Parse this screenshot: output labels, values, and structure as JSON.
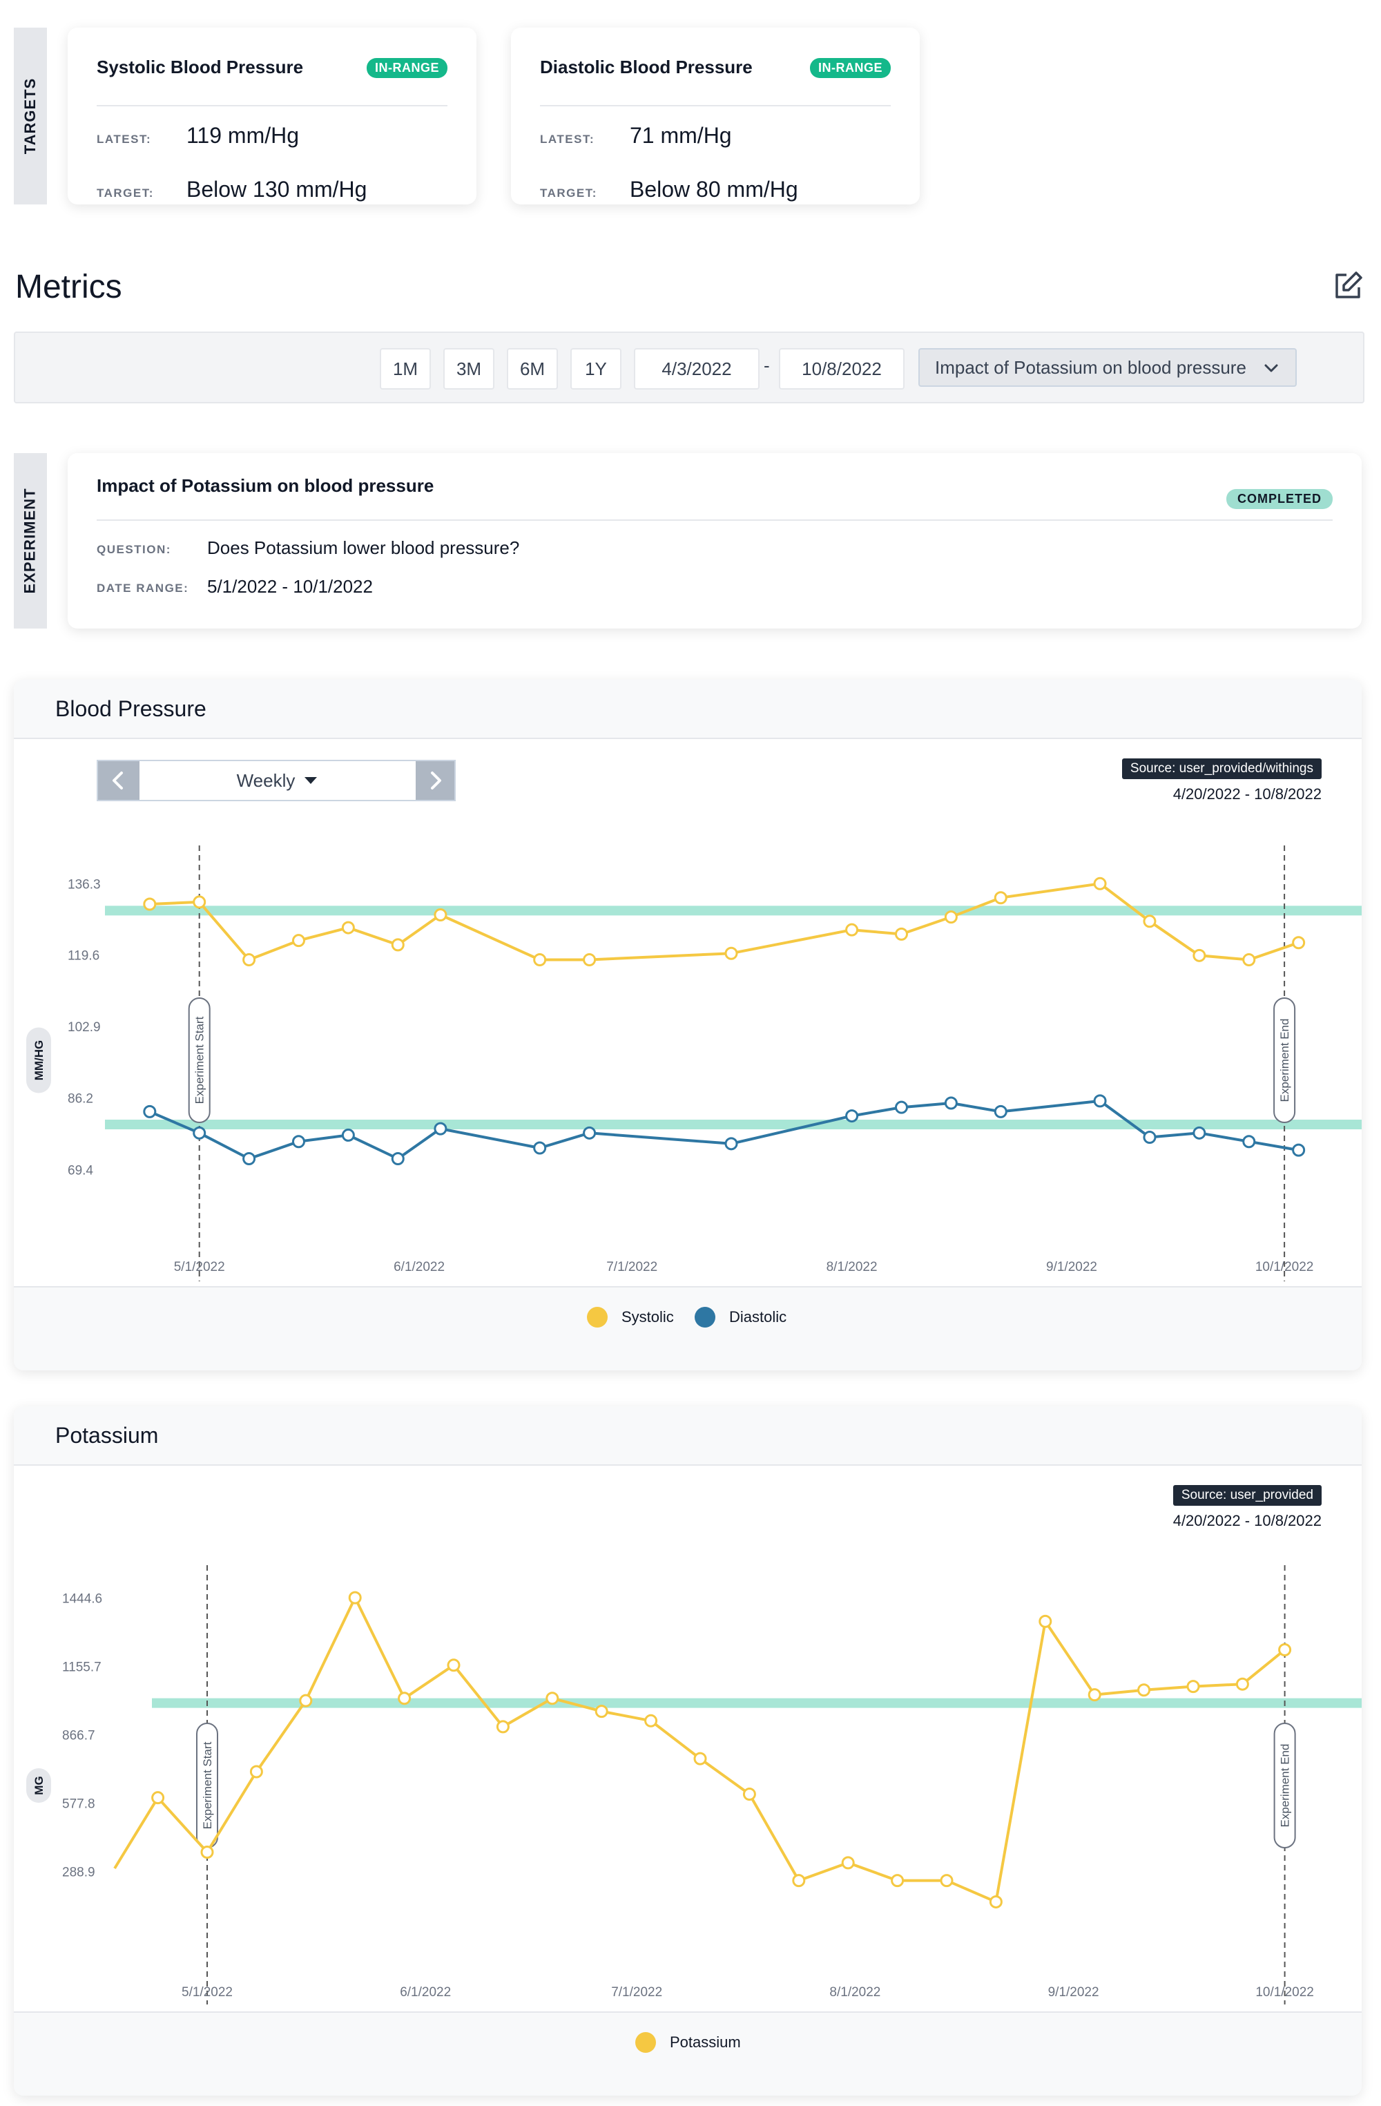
{
  "targets": {
    "side_label": "TARGETS",
    "cards": [
      {
        "title": "Systolic Blood Pressure",
        "badge": "IN-RANGE",
        "latest_label": "LATEST:",
        "latest_value": "119 mm/Hg",
        "target_label": "TARGET:",
        "target_value": "Below 130 mm/Hg"
      },
      {
        "title": "Diastolic Blood Pressure",
        "badge": "IN-RANGE",
        "latest_label": "LATEST:",
        "latest_value": "71 mm/Hg",
        "target_label": "TARGET:",
        "target_value": "Below 80 mm/Hg"
      }
    ]
  },
  "metrics": {
    "title": "Metrics",
    "edit_icon": "edit-icon",
    "range_buttons": [
      "1M",
      "3M",
      "6M",
      "1Y"
    ],
    "start_date": "4/3/2022",
    "date_separator": "-",
    "end_date": "10/8/2022",
    "experiment_select": "Impact of Potassium on blood pressure",
    "chevron_icon": "chevron-down-icon"
  },
  "experiment": {
    "side_label": "EXPERIMENT",
    "title": "Impact of Potassium on blood pressure",
    "status": "COMPLETED",
    "question_label": "QUESTION:",
    "question": "Does Potassium lower blood pressure?",
    "date_range_label": "DATE RANGE:",
    "date_range": "5/1/2022 - 10/1/2022"
  },
  "colors": {
    "systolic": "#f5c842",
    "diastolic": "#2e77a3",
    "target_band": "#a8e6d6",
    "badge_green": "#14b88a"
  },
  "bp_chart": {
    "title": "Blood Pressure",
    "period": "Weekly",
    "prev_icon": "chevron-left-icon",
    "next_icon": "chevron-right-icon",
    "source": "Source: user_provided/withings",
    "date_range": "4/20/2022 - 10/8/2022",
    "legend": [
      "Systolic",
      "Diastolic"
    ]
  },
  "potassium_chart": {
    "title": "Potassium",
    "source": "Source: user_provided",
    "date_range": "4/20/2022 - 10/8/2022",
    "legend": [
      "Potassium"
    ]
  },
  "chart_data": [
    {
      "type": "line",
      "title": "Blood Pressure",
      "ylabel": "MM/HG",
      "ylim": [
        59,
        142
      ],
      "yticks": [
        136.3,
        119.6,
        102.9,
        86.2,
        69.4
      ],
      "xticks": [
        "5/1/2022",
        "6/1/2022",
        "7/1/2022",
        "8/1/2022",
        "9/1/2022",
        "10/1/2022"
      ],
      "xlim": [
        "2022-04-21",
        "2022-10-08"
      ],
      "target_lines": [
        130,
        80
      ],
      "markers": [
        {
          "label": "Experiment Start",
          "x": "2022-05-01"
        },
        {
          "label": "Experiment End",
          "x": "2022-10-01"
        }
      ],
      "legend_position": "bottom",
      "series": [
        {
          "name": "Systolic",
          "x": [
            "2022-04-24",
            "2022-05-01",
            "2022-05-08",
            "2022-05-15",
            "2022-05-22",
            "2022-05-29",
            "2022-06-04",
            "2022-06-18",
            "2022-06-25",
            "2022-07-15",
            "2022-08-01",
            "2022-08-08",
            "2022-08-15",
            "2022-08-22",
            "2022-09-05",
            "2022-09-12",
            "2022-09-19",
            "2022-09-26",
            "2022-10-03"
          ],
          "y": [
            131.5,
            132,
            118.5,
            123,
            126,
            122,
            129,
            118.5,
            118.5,
            120,
            125.5,
            124.5,
            128.5,
            133,
            136.3,
            127.5,
            119.5,
            118.5,
            122.5
          ]
        },
        {
          "name": "Diastolic",
          "x": [
            "2022-04-24",
            "2022-05-01",
            "2022-05-08",
            "2022-05-15",
            "2022-05-22",
            "2022-05-29",
            "2022-06-04",
            "2022-06-18",
            "2022-06-25",
            "2022-07-15",
            "2022-08-01",
            "2022-08-08",
            "2022-08-15",
            "2022-08-22",
            "2022-09-05",
            "2022-09-12",
            "2022-09-19",
            "2022-09-26",
            "2022-10-03"
          ],
          "y": [
            83,
            78,
            72,
            76,
            77.5,
            72,
            79,
            74.5,
            78,
            75.5,
            82,
            84,
            85,
            83,
            85.5,
            77,
            78,
            76,
            74
          ]
        }
      ]
    },
    {
      "type": "line",
      "title": "Potassium",
      "ylabel": "MG",
      "ylim": [
        100,
        1530
      ],
      "yticks": [
        1444.6,
        1155.7,
        866.7,
        577.8,
        288.9
      ],
      "xticks": [
        "5/1/2022",
        "6/1/2022",
        "7/1/2022",
        "8/1/2022",
        "9/1/2022",
        "10/1/2022"
      ],
      "xlim": [
        "2022-04-21",
        "2022-10-08"
      ],
      "target_lines": [
        1000
      ],
      "markers": [
        {
          "label": "Experiment Start",
          "x": "2022-05-01"
        },
        {
          "label": "Experiment End",
          "x": "2022-10-01"
        }
      ],
      "legend_position": "bottom",
      "series": [
        {
          "name": "Potassium",
          "x": [
            "2022-04-24",
            "2022-05-01",
            "2022-05-08",
            "2022-05-15",
            "2022-05-22",
            "2022-05-29",
            "2022-06-05",
            "2022-06-12",
            "2022-06-19",
            "2022-06-26",
            "2022-07-03",
            "2022-07-10",
            "2022-07-17",
            "2022-07-24",
            "2022-07-31",
            "2022-08-07",
            "2022-08-14",
            "2022-08-21",
            "2022-08-28",
            "2022-09-04",
            "2022-09-11",
            "2022-09-18",
            "2022-09-25",
            "2022-10-01"
          ],
          "y": [
            600,
            370,
            710,
            1010,
            1445,
            1020,
            1160,
            900,
            1020,
            965,
            925,
            765,
            615,
            250,
            325,
            250,
            250,
            160,
            1345,
            1035,
            1055,
            1070,
            1080,
            1225
          ]
        }
      ]
    }
  ]
}
